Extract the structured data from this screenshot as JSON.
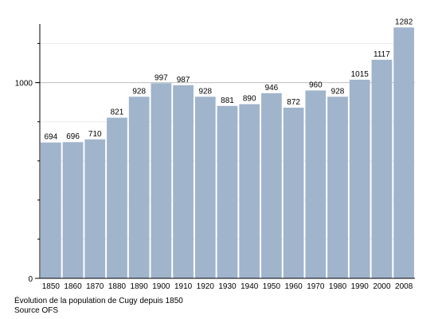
{
  "chart_data": {
    "type": "bar",
    "title": "",
    "xlabel": "",
    "ylabel": "",
    "categories": [
      "1850",
      "1860",
      "1870",
      "1880",
      "1890",
      "1900",
      "1910",
      "1920",
      "1930",
      "1940",
      "1950",
      "1960",
      "1970",
      "1980",
      "1990",
      "2000",
      "2008"
    ],
    "values": [
      694,
      696,
      710,
      821,
      928,
      997,
      987,
      928,
      881,
      890,
      946,
      872,
      960,
      928,
      1015,
      1117,
      1282
    ],
    "data_labels": [
      "694",
      "696",
      "710",
      "821",
      "928",
      "997",
      "987",
      "928",
      "881",
      "890",
      "946",
      "872",
      "960",
      "928",
      "1015",
      "1117",
      "1282"
    ],
    "ylim": [
      0,
      1300
    ],
    "yticks": [
      0,
      1000
    ],
    "ytick_labels": [
      "0",
      "1000"
    ],
    "minor_ticks_every": 200,
    "grid": true,
    "bar_color": "#a0b4cc",
    "grid_color": "#bfbfbf"
  },
  "caption": {
    "line1": "Évolution de la population de Cugy depuis 1850",
    "line2": "Source OFS"
  }
}
